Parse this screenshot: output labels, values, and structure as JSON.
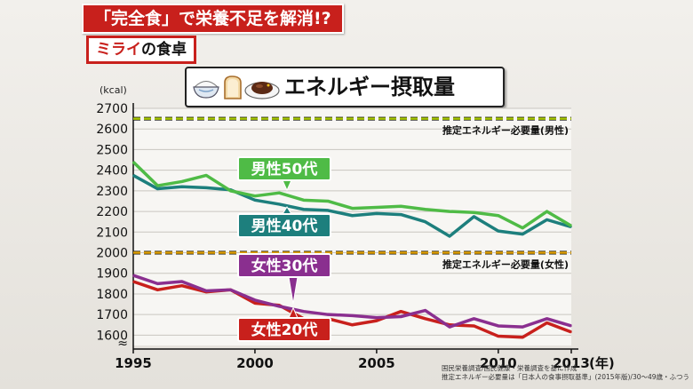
{
  "header": {
    "headline": "「完全食」で栄養不足を解消!?",
    "badge_highlight": "ミライ",
    "badge_rest": "の食卓"
  },
  "footer": {
    "source_1": "国民栄養調査/国民健康・栄養調査を基に作成",
    "source_2": "推定エネルギー必要量は「日本人の食事摂取基準」(2015年版)/30～49歳・ふつう"
  },
  "colors": {
    "male50": "#4fbb46",
    "male40": "#1d7f7d",
    "female30": "#8a2f8f",
    "female20": "#c8201c",
    "ref_male": "#a8c800",
    "ref_female": "#e0a000"
  },
  "chart_data": {
    "type": "line",
    "title": "エネルギー摂取量",
    "ylabel": "(kcal)",
    "xlabel": "(年)",
    "ylim": [
      1600,
      2700
    ],
    "yticks": [
      1600,
      1700,
      1800,
      1900,
      2000,
      2100,
      2200,
      2300,
      2400,
      2500,
      2600,
      2700
    ],
    "xticks": [
      1995,
      2000,
      2005,
      2010,
      2013
    ],
    "xtick_labels": [
      "1995",
      "2000",
      "2005",
      "2010",
      "2013"
    ],
    "x": [
      1995,
      1996,
      1997,
      1998,
      1999,
      2000,
      2001,
      2002,
      2003,
      2004,
      2005,
      2006,
      2007,
      2008,
      2009,
      2010,
      2011,
      2012,
      2013
    ],
    "series": [
      {
        "name": "男性50代",
        "values": [
          2440,
          2325,
          2345,
          2375,
          2300,
          2275,
          2290,
          2255,
          2250,
          2215,
          2220,
          2225,
          2210,
          2200,
          2195,
          2180,
          2120,
          2200,
          2130
        ]
      },
      {
        "name": "男性40代",
        "values": [
          2375,
          2310,
          2320,
          2315,
          2305,
          2255,
          2235,
          2210,
          2205,
          2180,
          2190,
          2185,
          2150,
          2080,
          2175,
          2105,
          2090,
          2160,
          2125
        ]
      },
      {
        "name": "女性30代",
        "values": [
          1890,
          1850,
          1860,
          1815,
          1820,
          1770,
          1740,
          1715,
          1700,
          1695,
          1685,
          1690,
          1720,
          1640,
          1680,
          1645,
          1640,
          1680,
          1645
        ]
      },
      {
        "name": "女性20代",
        "values": [
          1860,
          1820,
          1840,
          1810,
          1820,
          1755,
          1745,
          1680,
          1680,
          1650,
          1670,
          1715,
          1680,
          1650,
          1645,
          1595,
          1590,
          1660,
          1615
        ]
      }
    ],
    "reference_lines": [
      {
        "label": "推定エネルギー必要量(男性)",
        "value": 2650
      },
      {
        "label": "推定エネルギー必要量(女性)",
        "value": 2000
      }
    ],
    "axis_break_symbol": "≈",
    "grid": true
  }
}
